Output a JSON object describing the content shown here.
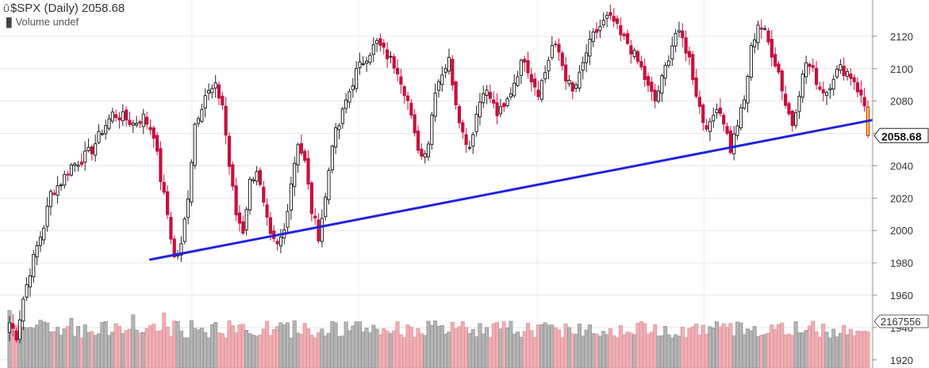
{
  "header": {
    "title": "$SPX (Daily) 2058.68",
    "subtitle": "Volume undef"
  },
  "chart_data": {
    "type": "candlestick",
    "title": "$SPX (Daily) 2058.68",
    "ylim": [
      1915,
      2140
    ],
    "yticks": [
      1920,
      1940,
      1960,
      1980,
      2000,
      2020,
      2040,
      2060,
      2080,
      2100,
      2120
    ],
    "ytick_labels": [
      "1920",
      "1940",
      "1960",
      "1980",
      "2000",
      "2020",
      "2040",
      "2060",
      "2080",
      "2100",
      "2120"
    ],
    "grid": true,
    "last_price_label": "2058.68",
    "volume_label": "2167556",
    "colors": {
      "up": "#222222",
      "down": "#c8103e",
      "vol_up": "#b4b4b4",
      "vol_down": "#f0aeb4",
      "trend": "#2222dd",
      "last": "#ffe600"
    },
    "anchors": [
      [
        0,
        1943
      ],
      [
        2,
        1935
      ],
      [
        4,
        1958
      ],
      [
        6,
        1975
      ],
      [
        8,
        1990
      ],
      [
        10,
        2003
      ],
      [
        12,
        2023
      ],
      [
        15,
        2030
      ],
      [
        18,
        2040
      ],
      [
        21,
        2044
      ],
      [
        24,
        2050
      ],
      [
        27,
        2062
      ],
      [
        30,
        2072
      ],
      [
        33,
        2070
      ],
      [
        36,
        2066
      ],
      [
        39,
        2070
      ],
      [
        42,
        2060
      ],
      [
        44,
        2032
      ],
      [
        46,
        2010
      ],
      [
        48,
        1983
      ],
      [
        50,
        1990
      ],
      [
        52,
        2022
      ],
      [
        54,
        2066
      ],
      [
        57,
        2084
      ],
      [
        60,
        2088
      ],
      [
        62,
        2078
      ],
      [
        64,
        2040
      ],
      [
        66,
        2010
      ],
      [
        68,
        2000
      ],
      [
        70,
        2030
      ],
      [
        72,
        2038
      ],
      [
        74,
        2015
      ],
      [
        76,
        1995
      ],
      [
        78,
        1990
      ],
      [
        80,
        2000
      ],
      [
        82,
        2030
      ],
      [
        84,
        2055
      ],
      [
        86,
        2042
      ],
      [
        88,
        2012
      ],
      [
        90,
        1997
      ],
      [
        92,
        2020
      ],
      [
        94,
        2055
      ],
      [
        96,
        2065
      ],
      [
        98,
        2080
      ],
      [
        101,
        2098
      ],
      [
        104,
        2108
      ],
      [
        107,
        2116
      ],
      [
        110,
        2108
      ],
      [
        113,
        2100
      ],
      [
        116,
        2080
      ],
      [
        118,
        2058
      ],
      [
        120,
        2046
      ],
      [
        122,
        2055
      ],
      [
        124,
        2088
      ],
      [
        126,
        2098
      ],
      [
        128,
        2105
      ],
      [
        130,
        2080
      ],
      [
        132,
        2060
      ],
      [
        134,
        2052
      ],
      [
        136,
        2072
      ],
      [
        138,
        2088
      ],
      [
        140,
        2082
      ],
      [
        142,
        2072
      ],
      [
        144,
        2075
      ],
      [
        146,
        2086
      ],
      [
        148,
        2098
      ],
      [
        150,
        2107
      ],
      [
        152,
        2094
      ],
      [
        154,
        2086
      ],
      [
        156,
        2098
      ],
      [
        158,
        2114
      ],
      [
        160,
        2110
      ],
      [
        162,
        2095
      ],
      [
        164,
        2085
      ],
      [
        166,
        2095
      ],
      [
        168,
        2110
      ],
      [
        170,
        2120
      ],
      [
        172,
        2126
      ],
      [
        174,
        2131
      ],
      [
        176,
        2129
      ],
      [
        178,
        2120
      ],
      [
        180,
        2116
      ],
      [
        182,
        2108
      ],
      [
        184,
        2100
      ],
      [
        186,
        2088
      ],
      [
        188,
        2080
      ],
      [
        190,
        2093
      ],
      [
        192,
        2108
      ],
      [
        194,
        2122
      ],
      [
        196,
        2118
      ],
      [
        198,
        2106
      ],
      [
        200,
        2085
      ],
      [
        202,
        2068
      ],
      [
        204,
        2064
      ],
      [
        206,
        2078
      ],
      [
        208,
        2068
      ],
      [
        210,
        2050
      ],
      [
        212,
        2066
      ],
      [
        214,
        2080
      ],
      [
        216,
        2112
      ],
      [
        218,
        2128
      ],
      [
        220,
        2122
      ],
      [
        222,
        2110
      ],
      [
        224,
        2098
      ],
      [
        226,
        2078
      ],
      [
        228,
        2066
      ],
      [
        230,
        2086
      ],
      [
        232,
        2104
      ],
      [
        234,
        2098
      ],
      [
        236,
        2088
      ],
      [
        238,
        2086
      ],
      [
        240,
        2096
      ],
      [
        242,
        2100
      ],
      [
        244,
        2098
      ],
      [
        246,
        2093
      ],
      [
        248,
        2082
      ],
      [
        250,
        2072
      ]
    ],
    "trendline": [
      [
        41,
        1982
      ],
      [
        258,
        2071
      ]
    ],
    "n_sessions": 251
  }
}
